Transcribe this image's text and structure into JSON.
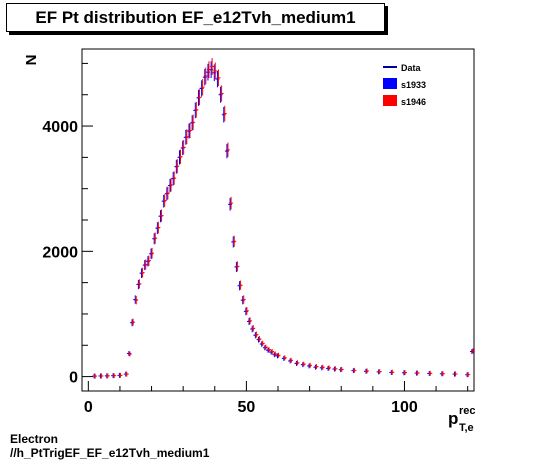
{
  "title": "EF Pt distribution EF_e12Tvh_medium1",
  "footer": {
    "line1": "Electron",
    "line2": "//h_PtTrigEF_EF_e12Tvh_medium1"
  },
  "colors": {
    "data": "#000099",
    "s1933": "#0000ff",
    "s1946": "#ff0000"
  },
  "chart_data": {
    "type": "scatter",
    "ylabel": "N",
    "xlabel_main": "p",
    "xlabel_sup": "rec",
    "xlabel_sub": "T,e",
    "xlim": [
      -2,
      122
    ],
    "ylim": [
      -230,
      5230
    ],
    "xticks": [
      0,
      50,
      100
    ],
    "yticks": [
      0,
      2000,
      4000
    ],
    "legend": {
      "placement": "top-right",
      "entries": [
        "Data",
        "s1933",
        "s1946"
      ]
    },
    "x": [
      2,
      4,
      6,
      8,
      10,
      12,
      13,
      14,
      15,
      16,
      17,
      18,
      19,
      20,
      21,
      22,
      23,
      24,
      25,
      26,
      27,
      28,
      29,
      30,
      31,
      32,
      33,
      34,
      35,
      36,
      37,
      38,
      39,
      40,
      41,
      42,
      43,
      44,
      45,
      46,
      47,
      48,
      49,
      50,
      51,
      52,
      53,
      54,
      55,
      56,
      57,
      58,
      59,
      60,
      62,
      64,
      66,
      68,
      70,
      72,
      74,
      76,
      78,
      80,
      84,
      88,
      92,
      96,
      100,
      104,
      108,
      112,
      116,
      120,
      121.5
    ],
    "series": [
      {
        "name": "s1933",
        "values": [
          8,
          10,
          12,
          15,
          20,
          40,
          370,
          860,
          1230,
          1470,
          1650,
          1780,
          1840,
          1960,
          2200,
          2370,
          2560,
          2800,
          2920,
          3050,
          3160,
          3350,
          3500,
          3650,
          3820,
          3920,
          4050,
          4250,
          4450,
          4600,
          4780,
          4860,
          4900,
          4850,
          4750,
          4500,
          4180,
          3600,
          2750,
          2150,
          1750,
          1450,
          1220,
          1040,
          880,
          760,
          660,
          590,
          520,
          460,
          420,
          390,
          350,
          330,
          290,
          250,
          210,
          190,
          170,
          150,
          140,
          130,
          120,
          110,
          95,
          85,
          75,
          65,
          60,
          55,
          50,
          45,
          40,
          30,
          400
        ]
      },
      {
        "name": "s1946",
        "values": [
          8,
          10,
          12,
          15,
          20,
          40,
          360,
          870,
          1220,
          1480,
          1660,
          1790,
          1850,
          1970,
          2210,
          2380,
          2570,
          2810,
          2930,
          3060,
          3170,
          3360,
          3510,
          3660,
          3830,
          3930,
          4060,
          4260,
          4460,
          4620,
          4800,
          4900,
          4950,
          4880,
          4770,
          4520,
          4200,
          3620,
          2770,
          2160,
          1760,
          1460,
          1230,
          1050,
          890,
          770,
          670,
          600,
          530,
          470,
          430,
          400,
          360,
          340,
          300,
          260,
          220,
          200,
          180,
          160,
          150,
          140,
          125,
          115,
          100,
          90,
          80,
          70,
          65,
          58,
          52,
          47,
          42,
          32,
          410
        ]
      }
    ]
  }
}
